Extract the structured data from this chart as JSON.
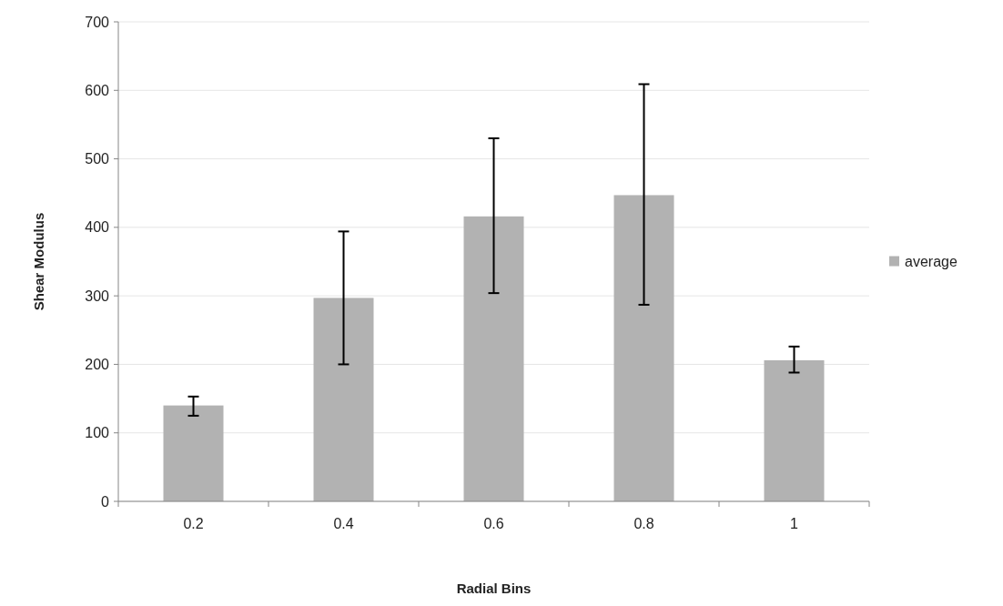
{
  "chart_data": {
    "type": "bar",
    "xlabel": "Radial Bins",
    "ylabel": "Shear Modulus",
    "categories": [
      "0.2",
      "0.4",
      "0.6",
      "0.8",
      "1"
    ],
    "series": [
      {
        "name": "average",
        "color": "#b2b2b2",
        "values": [
          140,
          297,
          416,
          447,
          206
        ],
        "errors": [
          [
            125,
            153
          ],
          [
            200,
            394
          ],
          [
            304,
            530
          ],
          [
            287,
            609
          ],
          [
            188,
            226
          ]
        ]
      }
    ],
    "ylim": [
      0,
      700
    ],
    "yticks": [
      0,
      100,
      200,
      300,
      400,
      500,
      600,
      700
    ],
    "grid": "y",
    "legend": "right"
  }
}
